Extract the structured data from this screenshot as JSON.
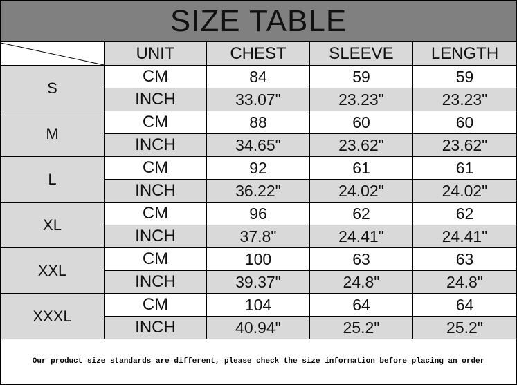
{
  "title": "SIZE TABLE",
  "headers": [
    "UNIT",
    "CHEST",
    "SLEEVE",
    "LENGTH"
  ],
  "colors": {
    "title_bg": "#808080",
    "shade": "#d9d9d9"
  },
  "rows": [
    {
      "size": "S",
      "cm": {
        "unit": "CM",
        "chest": "84",
        "sleeve": "59",
        "length": "59"
      },
      "inch": {
        "unit": "INCH",
        "chest": "33.07\"",
        "sleeve": "23.23\"",
        "length": "23.23\""
      }
    },
    {
      "size": "M",
      "cm": {
        "unit": "CM",
        "chest": "88",
        "sleeve": "60",
        "length": "60"
      },
      "inch": {
        "unit": "INCH",
        "chest": "34.65\"",
        "sleeve": "23.62\"",
        "length": "23.62\""
      }
    },
    {
      "size": "L",
      "cm": {
        "unit": "CM",
        "chest": "92",
        "sleeve": "61",
        "length": "61"
      },
      "inch": {
        "unit": "INCH",
        "chest": "36.22\"",
        "sleeve": "24.02\"",
        "length": "24.02\""
      }
    },
    {
      "size": "XL",
      "cm": {
        "unit": "CM",
        "chest": "96",
        "sleeve": "62",
        "length": "62"
      },
      "inch": {
        "unit": "INCH",
        "chest": "37.8\"",
        "sleeve": "24.41\"",
        "length": "24.41\""
      }
    },
    {
      "size": "XXL",
      "cm": {
        "unit": "CM",
        "chest": "100",
        "sleeve": "63",
        "length": "63"
      },
      "inch": {
        "unit": "INCH",
        "chest": "39.37\"",
        "sleeve": "24.8\"",
        "length": "24.8\""
      }
    },
    {
      "size": "XXXL",
      "cm": {
        "unit": "CM",
        "chest": "104",
        "sleeve": "64",
        "length": "64"
      },
      "inch": {
        "unit": "INCH",
        "chest": "40.94\"",
        "sleeve": "25.2\"",
        "length": "25.2\""
      }
    }
  ],
  "footer": "Our product size standards are different, please check the size information before placing an order"
}
